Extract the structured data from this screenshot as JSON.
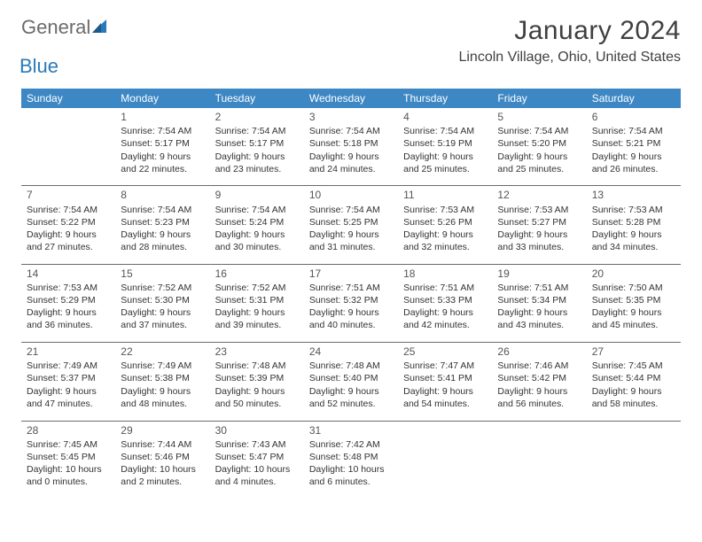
{
  "logo": {
    "text1": "General",
    "text2": "Blue"
  },
  "title": "January 2024",
  "location": "Lincoln Village, Ohio, United States",
  "colors": {
    "header_bg": "#3d87c4",
    "header_text": "#ffffff",
    "body_text": "#333333",
    "rule": "#6b6b6b",
    "logo_gray": "#6b6b6b",
    "logo_blue": "#2a7ab8"
  },
  "day_headers": [
    "Sunday",
    "Monday",
    "Tuesday",
    "Wednesday",
    "Thursday",
    "Friday",
    "Saturday"
  ],
  "weeks": [
    [
      null,
      {
        "n": "1",
        "sr": "Sunrise: 7:54 AM",
        "ss": "Sunset: 5:17 PM",
        "d1": "Daylight: 9 hours",
        "d2": "and 22 minutes."
      },
      {
        "n": "2",
        "sr": "Sunrise: 7:54 AM",
        "ss": "Sunset: 5:17 PM",
        "d1": "Daylight: 9 hours",
        "d2": "and 23 minutes."
      },
      {
        "n": "3",
        "sr": "Sunrise: 7:54 AM",
        "ss": "Sunset: 5:18 PM",
        "d1": "Daylight: 9 hours",
        "d2": "and 24 minutes."
      },
      {
        "n": "4",
        "sr": "Sunrise: 7:54 AM",
        "ss": "Sunset: 5:19 PM",
        "d1": "Daylight: 9 hours",
        "d2": "and 25 minutes."
      },
      {
        "n": "5",
        "sr": "Sunrise: 7:54 AM",
        "ss": "Sunset: 5:20 PM",
        "d1": "Daylight: 9 hours",
        "d2": "and 25 minutes."
      },
      {
        "n": "6",
        "sr": "Sunrise: 7:54 AM",
        "ss": "Sunset: 5:21 PM",
        "d1": "Daylight: 9 hours",
        "d2": "and 26 minutes."
      }
    ],
    [
      {
        "n": "7",
        "sr": "Sunrise: 7:54 AM",
        "ss": "Sunset: 5:22 PM",
        "d1": "Daylight: 9 hours",
        "d2": "and 27 minutes."
      },
      {
        "n": "8",
        "sr": "Sunrise: 7:54 AM",
        "ss": "Sunset: 5:23 PM",
        "d1": "Daylight: 9 hours",
        "d2": "and 28 minutes."
      },
      {
        "n": "9",
        "sr": "Sunrise: 7:54 AM",
        "ss": "Sunset: 5:24 PM",
        "d1": "Daylight: 9 hours",
        "d2": "and 30 minutes."
      },
      {
        "n": "10",
        "sr": "Sunrise: 7:54 AM",
        "ss": "Sunset: 5:25 PM",
        "d1": "Daylight: 9 hours",
        "d2": "and 31 minutes."
      },
      {
        "n": "11",
        "sr": "Sunrise: 7:53 AM",
        "ss": "Sunset: 5:26 PM",
        "d1": "Daylight: 9 hours",
        "d2": "and 32 minutes."
      },
      {
        "n": "12",
        "sr": "Sunrise: 7:53 AM",
        "ss": "Sunset: 5:27 PM",
        "d1": "Daylight: 9 hours",
        "d2": "and 33 minutes."
      },
      {
        "n": "13",
        "sr": "Sunrise: 7:53 AM",
        "ss": "Sunset: 5:28 PM",
        "d1": "Daylight: 9 hours",
        "d2": "and 34 minutes."
      }
    ],
    [
      {
        "n": "14",
        "sr": "Sunrise: 7:53 AM",
        "ss": "Sunset: 5:29 PM",
        "d1": "Daylight: 9 hours",
        "d2": "and 36 minutes."
      },
      {
        "n": "15",
        "sr": "Sunrise: 7:52 AM",
        "ss": "Sunset: 5:30 PM",
        "d1": "Daylight: 9 hours",
        "d2": "and 37 minutes."
      },
      {
        "n": "16",
        "sr": "Sunrise: 7:52 AM",
        "ss": "Sunset: 5:31 PM",
        "d1": "Daylight: 9 hours",
        "d2": "and 39 minutes."
      },
      {
        "n": "17",
        "sr": "Sunrise: 7:51 AM",
        "ss": "Sunset: 5:32 PM",
        "d1": "Daylight: 9 hours",
        "d2": "and 40 minutes."
      },
      {
        "n": "18",
        "sr": "Sunrise: 7:51 AM",
        "ss": "Sunset: 5:33 PM",
        "d1": "Daylight: 9 hours",
        "d2": "and 42 minutes."
      },
      {
        "n": "19",
        "sr": "Sunrise: 7:51 AM",
        "ss": "Sunset: 5:34 PM",
        "d1": "Daylight: 9 hours",
        "d2": "and 43 minutes."
      },
      {
        "n": "20",
        "sr": "Sunrise: 7:50 AM",
        "ss": "Sunset: 5:35 PM",
        "d1": "Daylight: 9 hours",
        "d2": "and 45 minutes."
      }
    ],
    [
      {
        "n": "21",
        "sr": "Sunrise: 7:49 AM",
        "ss": "Sunset: 5:37 PM",
        "d1": "Daylight: 9 hours",
        "d2": "and 47 minutes."
      },
      {
        "n": "22",
        "sr": "Sunrise: 7:49 AM",
        "ss": "Sunset: 5:38 PM",
        "d1": "Daylight: 9 hours",
        "d2": "and 48 minutes."
      },
      {
        "n": "23",
        "sr": "Sunrise: 7:48 AM",
        "ss": "Sunset: 5:39 PM",
        "d1": "Daylight: 9 hours",
        "d2": "and 50 minutes."
      },
      {
        "n": "24",
        "sr": "Sunrise: 7:48 AM",
        "ss": "Sunset: 5:40 PM",
        "d1": "Daylight: 9 hours",
        "d2": "and 52 minutes."
      },
      {
        "n": "25",
        "sr": "Sunrise: 7:47 AM",
        "ss": "Sunset: 5:41 PM",
        "d1": "Daylight: 9 hours",
        "d2": "and 54 minutes."
      },
      {
        "n": "26",
        "sr": "Sunrise: 7:46 AM",
        "ss": "Sunset: 5:42 PM",
        "d1": "Daylight: 9 hours",
        "d2": "and 56 minutes."
      },
      {
        "n": "27",
        "sr": "Sunrise: 7:45 AM",
        "ss": "Sunset: 5:44 PM",
        "d1": "Daylight: 9 hours",
        "d2": "and 58 minutes."
      }
    ],
    [
      {
        "n": "28",
        "sr": "Sunrise: 7:45 AM",
        "ss": "Sunset: 5:45 PM",
        "d1": "Daylight: 10 hours",
        "d2": "and 0 minutes."
      },
      {
        "n": "29",
        "sr": "Sunrise: 7:44 AM",
        "ss": "Sunset: 5:46 PM",
        "d1": "Daylight: 10 hours",
        "d2": "and 2 minutes."
      },
      {
        "n": "30",
        "sr": "Sunrise: 7:43 AM",
        "ss": "Sunset: 5:47 PM",
        "d1": "Daylight: 10 hours",
        "d2": "and 4 minutes."
      },
      {
        "n": "31",
        "sr": "Sunrise: 7:42 AM",
        "ss": "Sunset: 5:48 PM",
        "d1": "Daylight: 10 hours",
        "d2": "and 6 minutes."
      },
      null,
      null,
      null
    ]
  ]
}
